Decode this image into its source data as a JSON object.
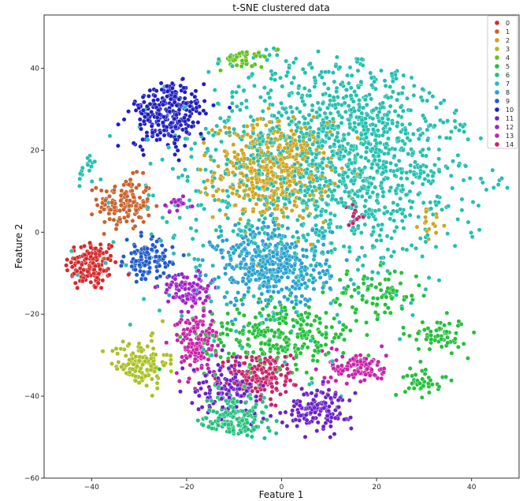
{
  "chart_data": {
    "type": "scatter",
    "title": "t-SNE clustered data",
    "xlabel": "Feature 1",
    "ylabel": "Feature 2",
    "xlim": [
      -50,
      50
    ],
    "ylim": [
      -60,
      53
    ],
    "x_ticks": [
      -40,
      -20,
      0,
      20,
      40
    ],
    "y_ticks": [
      -60,
      -40,
      -20,
      0,
      20,
      40
    ],
    "grid": false,
    "legend_placement": "top-right",
    "point_edge_color": "#ffffff",
    "series": [
      {
        "name": "0",
        "color": "#d62728",
        "clusters": [
          {
            "x": -40,
            "y": -8,
            "sx": 2.8,
            "sy": 3.2,
            "n": 140
          }
        ]
      },
      {
        "name": "1",
        "color": "#c8622a",
        "clusters": [
          {
            "x": -33,
            "y": 7,
            "sx": 2.8,
            "sy": 3.2,
            "n": 140
          }
        ]
      },
      {
        "name": "2",
        "color": "#d2a41c",
        "clusters": [
          {
            "x": -2,
            "y": 15,
            "sx": 6,
            "sy": 6,
            "n": 460
          },
          {
            "x": 15,
            "y": 48,
            "sx": 1.6,
            "sy": 1.2,
            "n": 22
          },
          {
            "x": 32,
            "y": 2,
            "sx": 1.5,
            "sy": 1.5,
            "n": 15
          }
        ]
      },
      {
        "name": "3",
        "color": "#a8c022",
        "clusters": [
          {
            "x": -30,
            "y": -32,
            "sx": 3,
            "sy": 3,
            "n": 130
          }
        ]
      },
      {
        "name": "4",
        "color": "#62c21e",
        "clusters": [
          {
            "x": -10,
            "y": 45,
            "sx": 4,
            "sy": 2.5,
            "n": 170
          }
        ]
      },
      {
        "name": "5",
        "color": "#22c03a",
        "clusters": [
          {
            "x": 0,
            "y": -25,
            "sx": 8,
            "sy": 4,
            "n": 280
          },
          {
            "x": 20,
            "y": -15,
            "sx": 5,
            "sy": 3,
            "n": 80
          },
          {
            "x": 33,
            "y": -25,
            "sx": 3,
            "sy": 2,
            "n": 60
          },
          {
            "x": 30,
            "y": -36,
            "sx": 2,
            "sy": 2,
            "n": 40
          }
        ]
      },
      {
        "name": "6",
        "color": "#22c07c",
        "clusters": [
          {
            "x": -10,
            "y": -46,
            "sx": 3.5,
            "sy": 3.5,
            "n": 200
          }
        ]
      },
      {
        "name": "7",
        "color": "#22c0b0",
        "clusters": [
          {
            "x": 15,
            "y": 20,
            "sx": 14,
            "sy": 12,
            "n": 1100
          },
          {
            "x": 0,
            "y": 10,
            "sx": 16,
            "sy": 18,
            "n": 500
          },
          {
            "x": -42,
            "y": 16,
            "sx": 1.5,
            "sy": 1.5,
            "n": 30
          },
          {
            "x": 22,
            "y": 44,
            "sx": 2,
            "sy": 1.2,
            "n": 25
          },
          {
            "x": 14,
            "y": -54,
            "sx": 1,
            "sy": 0.5,
            "n": 10
          }
        ]
      },
      {
        "name": "8",
        "color": "#2aa0d0",
        "clusters": [
          {
            "x": -2,
            "y": -8,
            "sx": 6,
            "sy": 5,
            "n": 420
          }
        ]
      },
      {
        "name": "9",
        "color": "#1f5ac8",
        "clusters": [
          {
            "x": -28,
            "y": -7,
            "sx": 2.5,
            "sy": 2.5,
            "n": 110
          }
        ]
      },
      {
        "name": "10",
        "color": "#1f1fc0",
        "clusters": [
          {
            "x": -24,
            "y": 29,
            "sx": 4,
            "sy": 4,
            "n": 280
          }
        ]
      },
      {
        "name": "11",
        "color": "#6a22c8",
        "clusters": [
          {
            "x": -12,
            "y": -38,
            "sx": 3.5,
            "sy": 3,
            "n": 120
          },
          {
            "x": 8,
            "y": -43,
            "sx": 3.5,
            "sy": 2.5,
            "n": 140
          }
        ]
      },
      {
        "name": "12",
        "color": "#a022c8",
        "clusters": [
          {
            "x": -20,
            "y": -14,
            "sx": 2.5,
            "sy": 2,
            "n": 90
          },
          {
            "x": -22,
            "y": 7,
            "sx": 1.5,
            "sy": 1,
            "n": 25
          }
        ]
      },
      {
        "name": "13",
        "color": "#c822a8",
        "clusters": [
          {
            "x": -18,
            "y": -27,
            "sx": 2,
            "sy": 4,
            "n": 150
          },
          {
            "x": 16,
            "y": -33,
            "sx": 3,
            "sy": 2,
            "n": 110
          }
        ]
      },
      {
        "name": "14",
        "color": "#c8226a",
        "clusters": [
          {
            "x": -4,
            "y": -35,
            "sx": 3.5,
            "sy": 3,
            "n": 170
          },
          {
            "x": 15,
            "y": 4,
            "sx": 1,
            "sy": 1.2,
            "n": 12
          }
        ]
      }
    ]
  }
}
